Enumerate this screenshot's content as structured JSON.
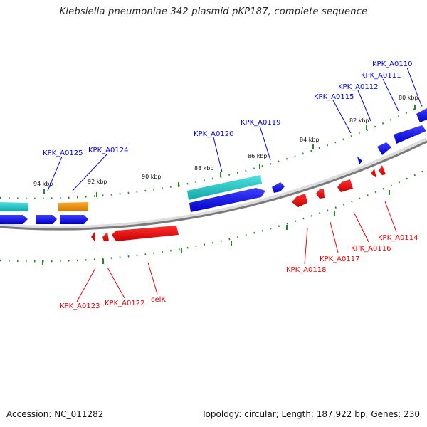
{
  "title": "Klebsiella pneumoniae 342 plasmid pKP187, complete sequence",
  "footer": {
    "accession": "Accession: NC_011282",
    "summary": "Topology: circular; Length: 187,922 bp; Genes: 230"
  },
  "colors": {
    "forward": "#0000ee",
    "reverse": "#ee0000",
    "rna_like": "#22c8c8",
    "other": "#e88a00",
    "backbone": "#888888",
    "ticks": "#228b22"
  },
  "scale_labels": [
    "80 kbp",
    "82 kbp",
    "84 kbp",
    "86 kbp",
    "88 kbp",
    "90 kbp",
    "92 kbp",
    "94 kbp"
  ],
  "forward_labels": [
    "KPK_A0110",
    "KPK_A0111",
    "KPK_A0112",
    "KPK_A0115",
    "KPK_A0119",
    "KPK_A0120",
    "KPK_A0124",
    "KPK_A0125"
  ],
  "reverse_labels": [
    "KPK_A0114",
    "KPK_A0116",
    "KPK_A0117",
    "KPK_A0118",
    "celK",
    "KPK_A0122",
    "KPK_A0123"
  ]
}
